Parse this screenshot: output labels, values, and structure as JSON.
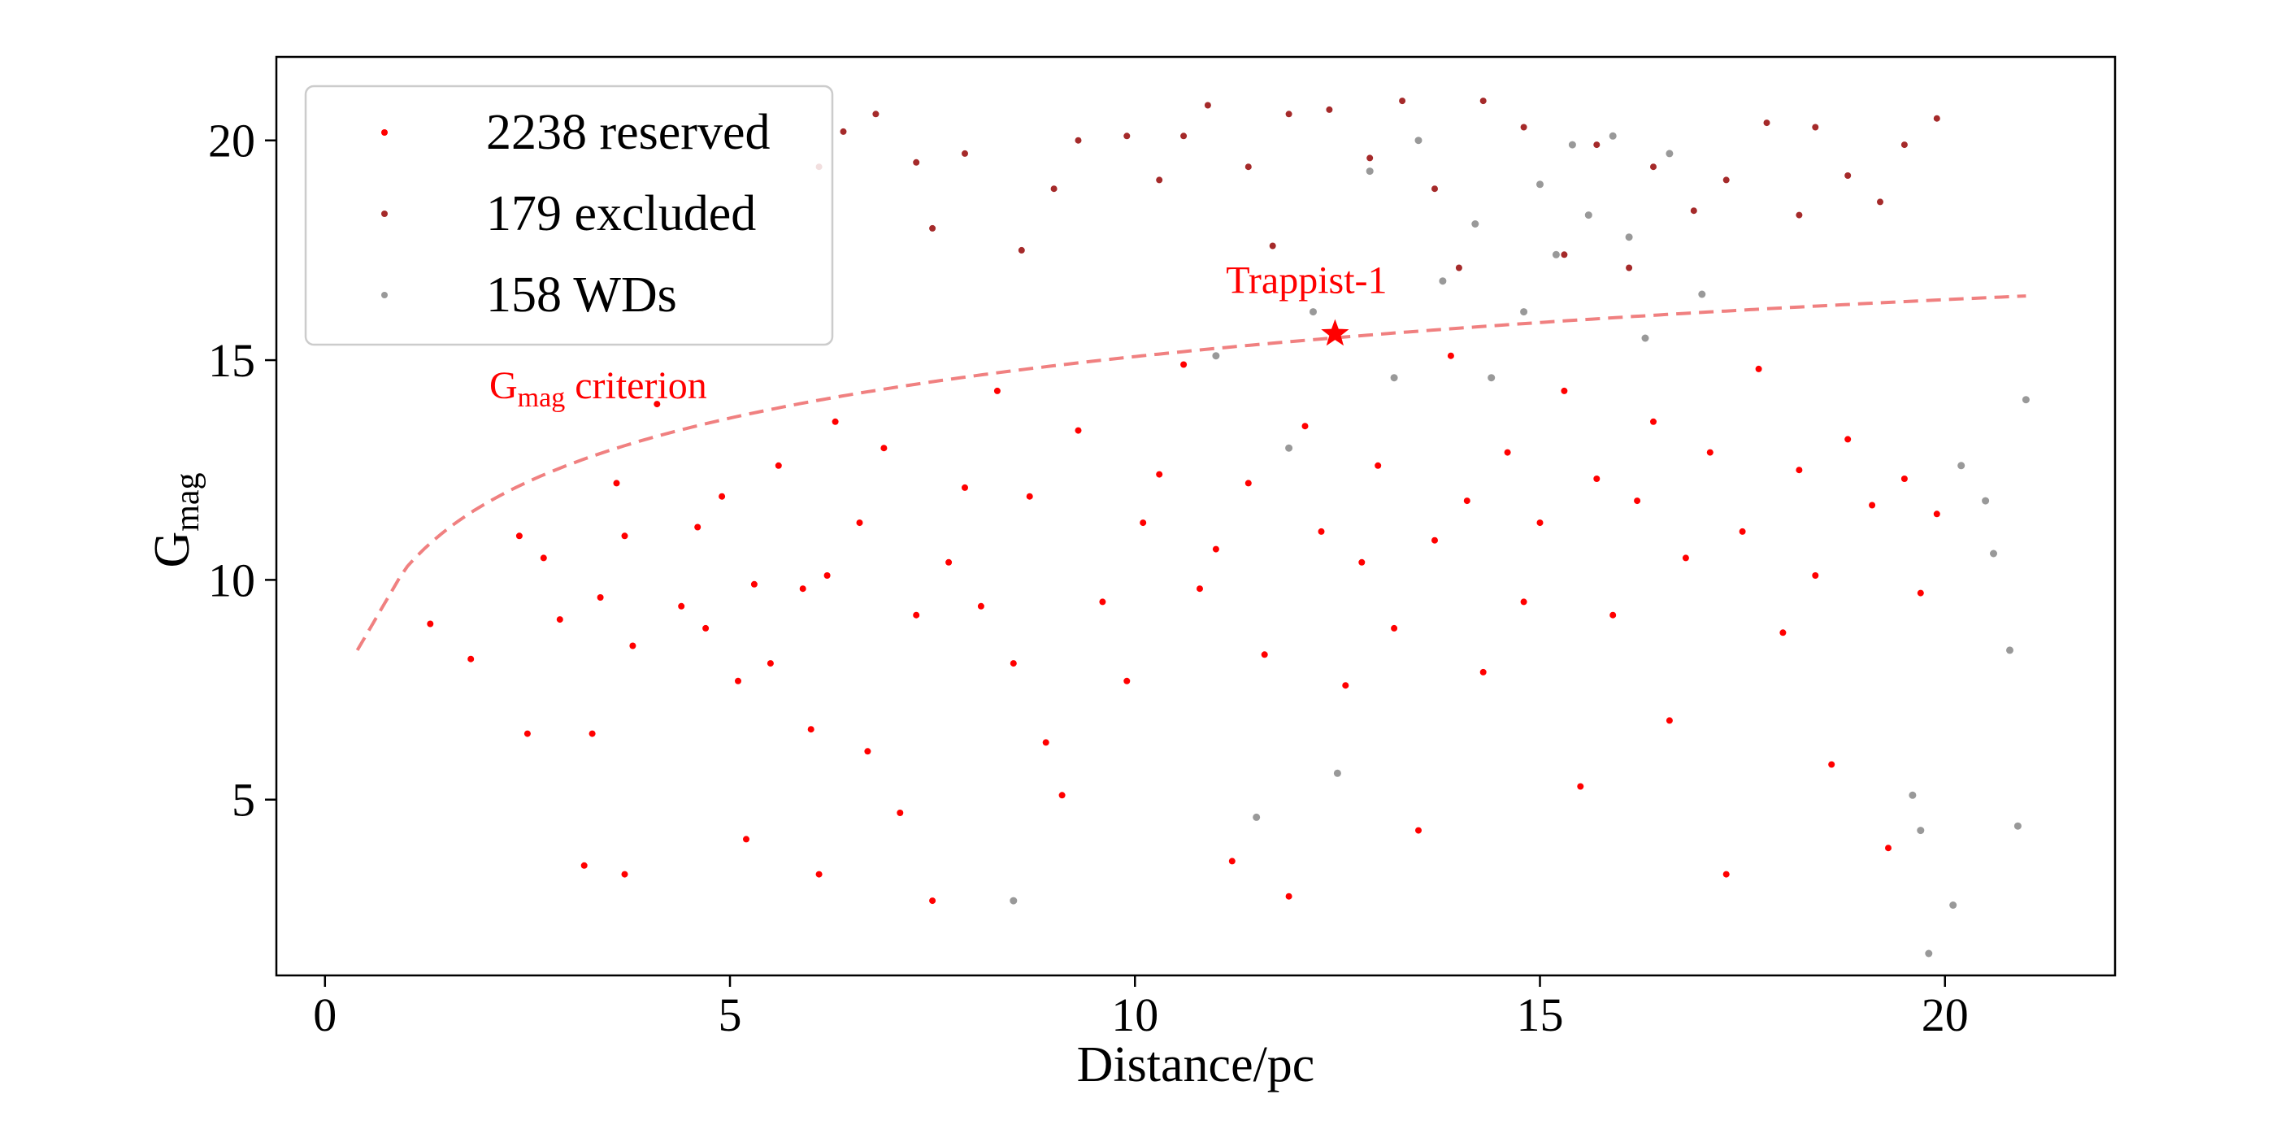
{
  "chart_data": {
    "type": "scatter",
    "title": "",
    "xlabel": "Distance/pc",
    "ylabel": {
      "main": "G",
      "sub": "mag"
    },
    "xlim": [
      -0.6,
      22.1
    ],
    "ylim": [
      1.0,
      21.9
    ],
    "xticks": [
      0,
      5,
      10,
      15,
      20
    ],
    "yticks": [
      5,
      10,
      15,
      20
    ],
    "x_tick_labels": [
      "0",
      "5",
      "10",
      "15",
      "20"
    ],
    "y_tick_labels": [
      "5",
      "10",
      "15",
      "20"
    ],
    "grid": false,
    "legend": {
      "placement": "upper-left",
      "entries": [
        {
          "label": "2238 reserved",
          "color": "#ff0000"
        },
        {
          "label": "179 excluded",
          "color": "#a52a2a"
        },
        {
          "label": "158 WDs",
          "color": "#999999"
        }
      ]
    },
    "series": [
      {
        "name": "2238 reserved",
        "color": "#ff0000",
        "count": 2238,
        "points": [
          [
            1.3,
            9
          ],
          [
            1.8,
            8.2
          ],
          [
            2.4,
            11
          ],
          [
            2.5,
            6.5
          ],
          [
            2.7,
            10.5
          ],
          [
            2.9,
            9.1
          ],
          [
            3.2,
            3.5
          ],
          [
            3.3,
            6.5
          ],
          [
            3.4,
            9.6
          ],
          [
            3.6,
            12.2
          ],
          [
            3.7,
            11
          ],
          [
            3.7,
            3.3
          ],
          [
            3.8,
            8.5
          ],
          [
            4.1,
            14
          ],
          [
            4.4,
            9.4
          ],
          [
            4.6,
            11.2
          ],
          [
            4.7,
            8.9
          ],
          [
            4.9,
            11.9
          ],
          [
            5.1,
            7.7
          ],
          [
            5.2,
            4.1
          ],
          [
            5.3,
            9.9
          ],
          [
            5.5,
            8.1
          ],
          [
            5.6,
            12.6
          ],
          [
            5.9,
            9.8
          ],
          [
            6,
            6.6
          ],
          [
            6.1,
            3.3
          ],
          [
            6.2,
            10.1
          ],
          [
            6.3,
            13.6
          ],
          [
            6.6,
            11.3
          ],
          [
            6.7,
            6.1
          ],
          [
            6.9,
            13
          ],
          [
            7.1,
            4.7
          ],
          [
            7.3,
            9.2
          ],
          [
            7.5,
            2.7
          ],
          [
            7.7,
            10.4
          ],
          [
            7.9,
            12.1
          ],
          [
            8.1,
            9.4
          ],
          [
            8.3,
            14.3
          ],
          [
            8.5,
            8.1
          ],
          [
            8.7,
            11.9
          ],
          [
            8.9,
            6.3
          ],
          [
            9.1,
            5.1
          ],
          [
            9.3,
            13.4
          ],
          [
            9.6,
            9.5
          ],
          [
            9.9,
            7.7
          ],
          [
            10.1,
            11.3
          ],
          [
            10.3,
            12.4
          ],
          [
            10.6,
            14.9
          ],
          [
            10.8,
            9.8
          ],
          [
            11,
            10.7
          ],
          [
            11.2,
            3.6
          ],
          [
            11.4,
            12.2
          ],
          [
            11.6,
            8.3
          ],
          [
            11.9,
            2.8
          ],
          [
            12.1,
            13.5
          ],
          [
            12.3,
            11.1
          ],
          [
            12.6,
            7.6
          ],
          [
            12.8,
            10.4
          ],
          [
            13,
            12.6
          ],
          [
            13.2,
            8.9
          ],
          [
            13.5,
            4.3
          ],
          [
            13.7,
            10.9
          ],
          [
            13.9,
            15.1
          ],
          [
            14.1,
            11.8
          ],
          [
            14.3,
            7.9
          ],
          [
            14.6,
            12.9
          ],
          [
            14.8,
            9.5
          ],
          [
            15,
            11.3
          ],
          [
            15.3,
            14.3
          ],
          [
            15.5,
            5.3
          ],
          [
            15.7,
            12.3
          ],
          [
            15.9,
            9.2
          ],
          [
            16.2,
            11.8
          ],
          [
            16.4,
            13.6
          ],
          [
            16.6,
            6.8
          ],
          [
            16.8,
            10.5
          ],
          [
            17.1,
            12.9
          ],
          [
            17.3,
            3.3
          ],
          [
            17.5,
            11.1
          ],
          [
            17.7,
            14.8
          ],
          [
            18,
            8.8
          ],
          [
            18.2,
            12.5
          ],
          [
            18.4,
            10.1
          ],
          [
            18.6,
            5.8
          ],
          [
            18.8,
            13.2
          ],
          [
            19.1,
            11.7
          ],
          [
            19.3,
            3.9
          ],
          [
            19.5,
            12.3
          ],
          [
            19.7,
            9.7
          ],
          [
            19.9,
            11.5
          ]
        ]
      },
      {
        "name": "179 excluded",
        "color": "#a52a2a",
        "count": 179,
        "points": [
          [
            6.1,
            19.4
          ],
          [
            6.4,
            20.2
          ],
          [
            6.8,
            20.6
          ],
          [
            7.3,
            19.5
          ],
          [
            7.5,
            18
          ],
          [
            7.9,
            19.7
          ],
          [
            8.6,
            17.5
          ],
          [
            9,
            18.9
          ],
          [
            9.3,
            20
          ],
          [
            9.9,
            20.1
          ],
          [
            10.3,
            19.1
          ],
          [
            10.6,
            20.1
          ],
          [
            10.9,
            20.8
          ],
          [
            11.4,
            19.4
          ],
          [
            11.7,
            17.6
          ],
          [
            11.9,
            20.6
          ],
          [
            12.4,
            20.7
          ],
          [
            12.9,
            19.6
          ],
          [
            13.3,
            20.9
          ],
          [
            13.7,
            18.9
          ],
          [
            14,
            17.1
          ],
          [
            14.3,
            20.9
          ],
          [
            14.8,
            20.3
          ],
          [
            15.3,
            17.4
          ],
          [
            15.7,
            19.9
          ],
          [
            16.1,
            17.1
          ],
          [
            16.4,
            19.4
          ],
          [
            16.9,
            18.4
          ],
          [
            17.3,
            19.1
          ],
          [
            17.8,
            20.4
          ],
          [
            18.2,
            18.3
          ],
          [
            18.4,
            20.3
          ],
          [
            18.8,
            19.2
          ],
          [
            19.2,
            18.6
          ],
          [
            19.5,
            19.9
          ],
          [
            19.9,
            20.5
          ]
        ]
      },
      {
        "name": "158 WDs",
        "color": "#999999",
        "count": 158,
        "points": [
          [
            8.5,
            2.7
          ],
          [
            11,
            15.1
          ],
          [
            11.5,
            4.6
          ],
          [
            11.9,
            13
          ],
          [
            12.2,
            16.1
          ],
          [
            12.5,
            5.6
          ],
          [
            12.9,
            19.3
          ],
          [
            13.2,
            14.6
          ],
          [
            13.5,
            20
          ],
          [
            13.8,
            16.8
          ],
          [
            14.2,
            18.1
          ],
          [
            14.4,
            14.6
          ],
          [
            14.8,
            16.1
          ],
          [
            15,
            19
          ],
          [
            15.2,
            17.4
          ],
          [
            15.4,
            19.9
          ],
          [
            15.6,
            18.3
          ],
          [
            15.9,
            20.1
          ],
          [
            16.1,
            17.8
          ],
          [
            16.3,
            15.5
          ],
          [
            16.6,
            19.7
          ],
          [
            17,
            16.5
          ],
          [
            19.6,
            5.1
          ],
          [
            19.7,
            4.3
          ],
          [
            19.8,
            1.5
          ],
          [
            20.1,
            2.6
          ],
          [
            20.2,
            12.6
          ],
          [
            20.5,
            11.8
          ],
          [
            20.6,
            10.6
          ],
          [
            20.8,
            8.4
          ],
          [
            20.9,
            4.4
          ],
          [
            21,
            14.1
          ]
        ]
      }
    ],
    "criterion_curve": {
      "label": {
        "main": "G",
        "sub": "mag",
        "rest": " criterion"
      },
      "color": "#f08080",
      "style": "dashed",
      "x_range": [
        0.4,
        21
      ],
      "formula": "G = 10.4 + 5*log10(d) - 0.45*(d-1)^-0.5 approx; anchors (0.4,8.4) (5,12.6) (10,14.8) (20,16.9)"
    },
    "annotations": [
      {
        "text": "Trappist-1",
        "x": 12.47,
        "y": 15.6,
        "marker": "star",
        "color": "#ff0000"
      }
    ]
  }
}
